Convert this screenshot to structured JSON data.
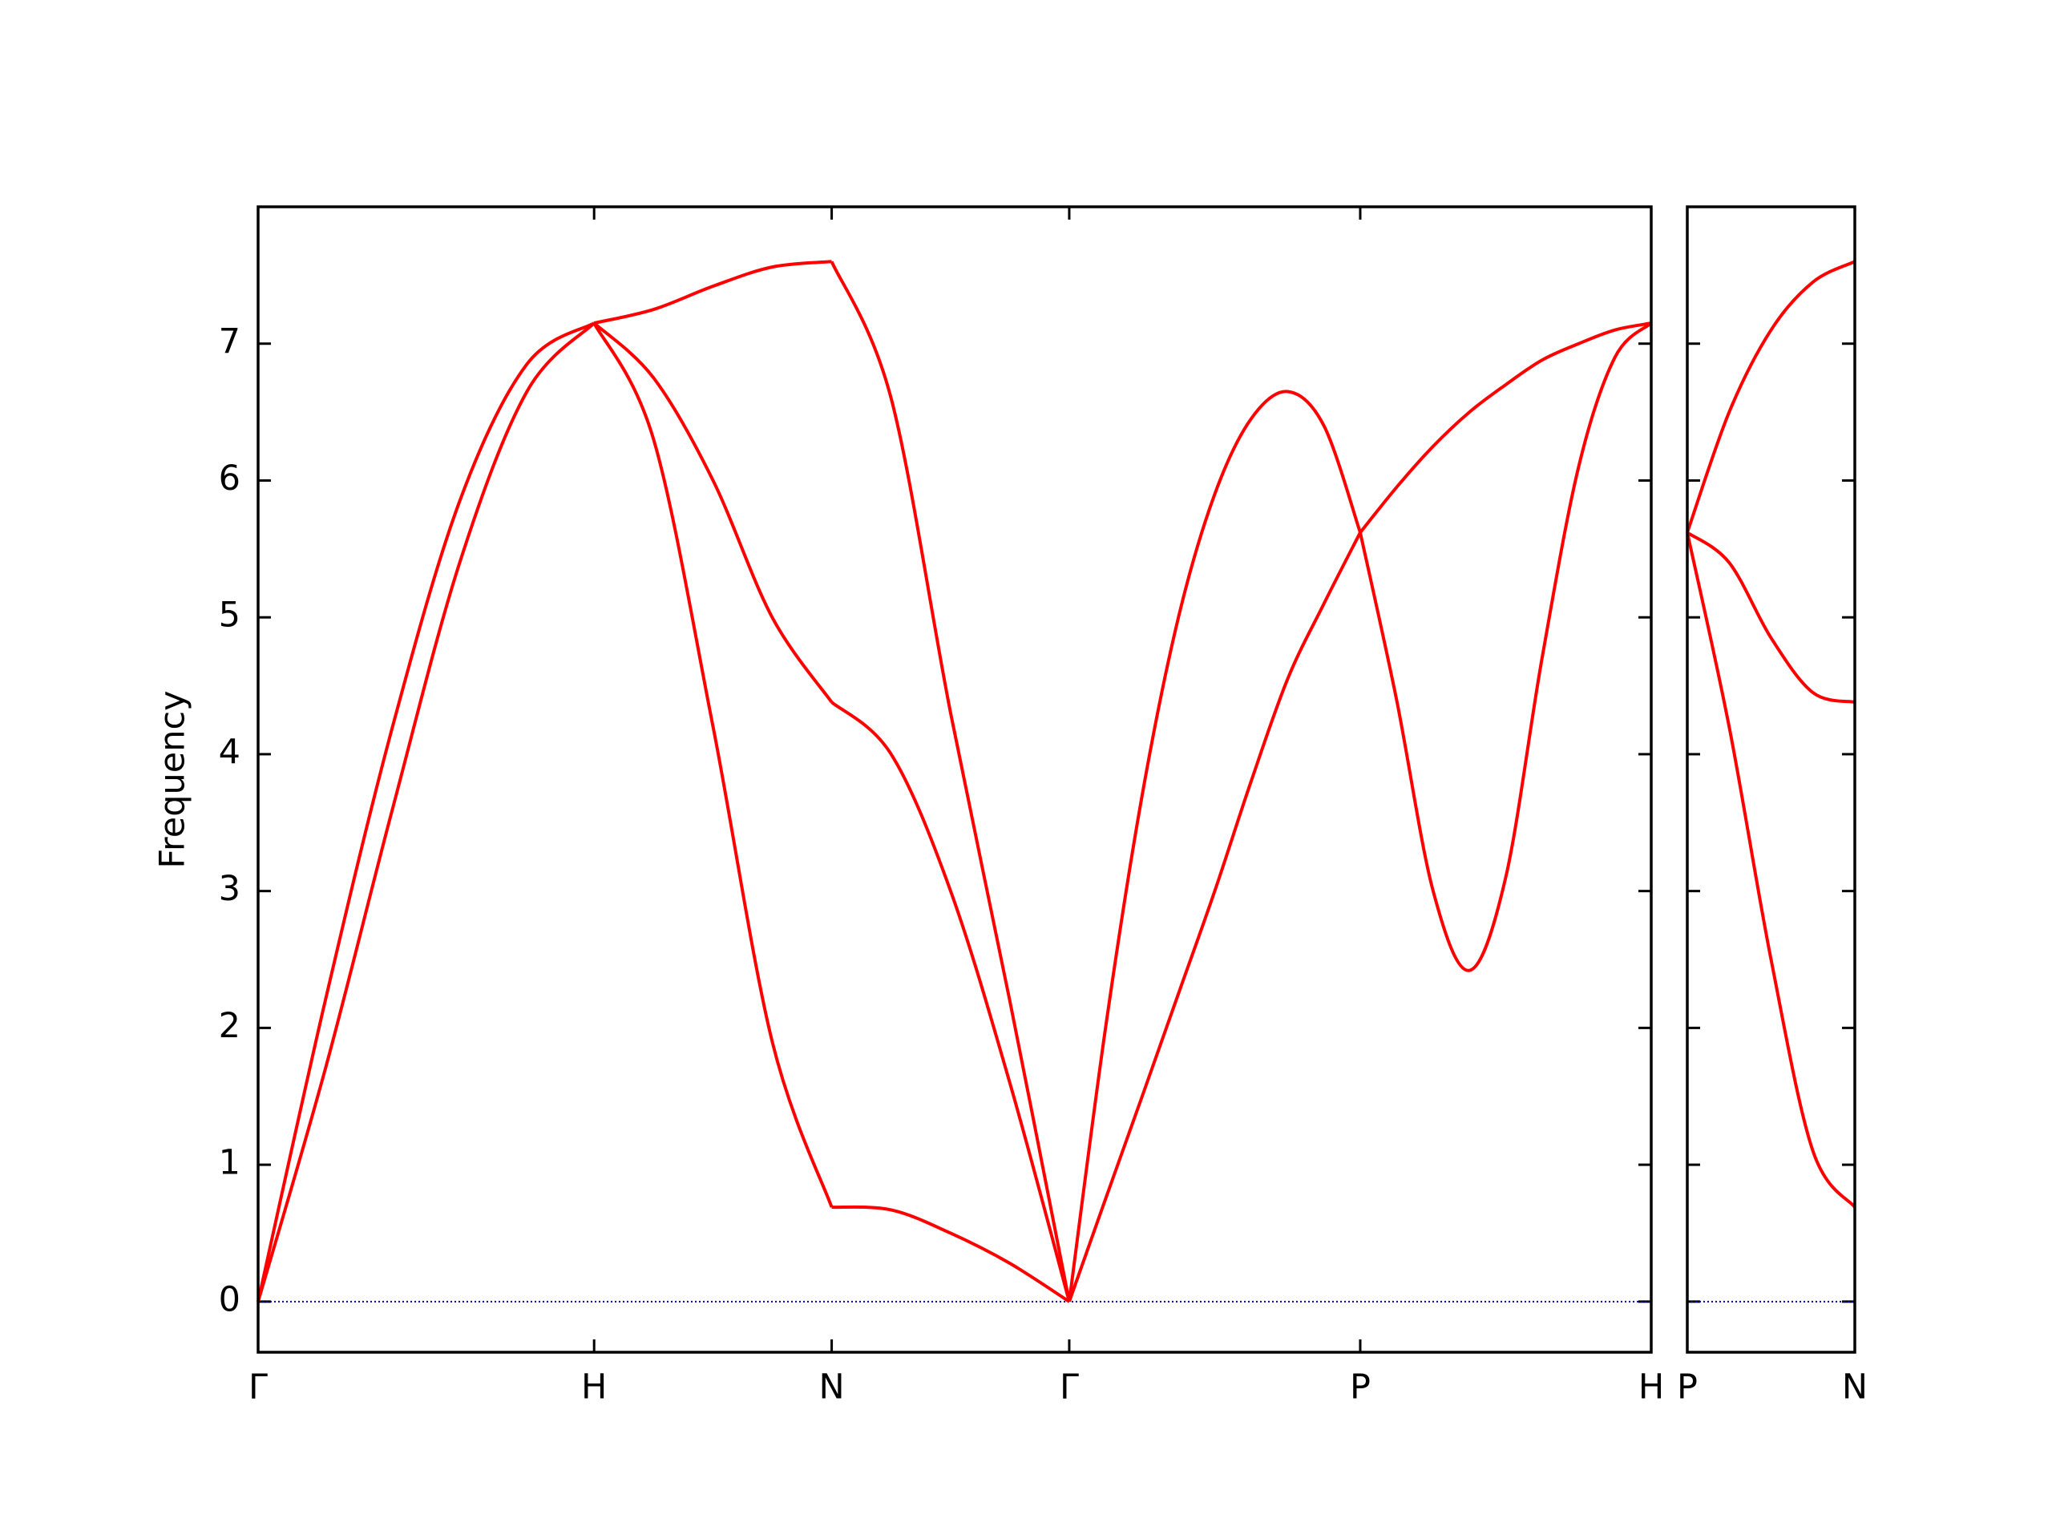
{
  "chart_data": [
    {
      "type": "line",
      "ylabel": "Frequency",
      "xlim": [
        0,
        4.146
      ],
      "ylim": [
        -0.37,
        8.0
      ],
      "xticks": [
        {
          "value": 0,
          "label": "Γ"
        },
        {
          "value": 1,
          "label": "H"
        },
        {
          "value": 1.707,
          "label": "N"
        },
        {
          "value": 2.414,
          "label": "Γ"
        },
        {
          "value": 3.28,
          "label": "P"
        },
        {
          "value": 4.146,
          "label": "H"
        }
      ],
      "yticks": [
        0,
        1,
        2,
        3,
        4,
        5,
        6,
        7
      ],
      "ytick_labels": true,
      "zero_line": {
        "value": 0,
        "color": "#0000aa"
      },
      "series": [
        {
          "color": "#ff0000",
          "x": [
            0,
            0.2,
            0.4,
            0.6,
            0.8,
            1.0
          ],
          "values": [
            0,
            2.2,
            4.2,
            5.85,
            6.85,
            7.15
          ]
        },
        {
          "color": "#ff0000",
          "x": [
            0,
            0.2,
            0.4,
            0.6,
            0.8,
            1.0
          ],
          "values": [
            0,
            1.7,
            3.6,
            5.4,
            6.65,
            7.15
          ]
        },
        {
          "color": "#ff0000",
          "x": [
            1,
            1.177,
            1.354,
            1.53,
            1.707
          ],
          "values": [
            7.15,
            7.25,
            7.42,
            7.56,
            7.6
          ]
        },
        {
          "color": "#ff0000",
          "x": [
            1,
            1.177,
            1.354,
            1.53,
            1.707
          ],
          "values": [
            7.15,
            6.75,
            6.0,
            5.0,
            4.38
          ]
        },
        {
          "color": "#ff0000",
          "x": [
            1,
            1.177,
            1.354,
            1.53,
            1.707
          ],
          "values": [
            7.15,
            6.3,
            4.2,
            1.9,
            0.69
          ]
        },
        {
          "color": "#ff0000",
          "x": [
            1.707,
            1.884,
            2.061,
            2.237,
            2.414
          ],
          "values": [
            7.6,
            6.6,
            4.3,
            2.2,
            0
          ]
        },
        {
          "color": "#ff0000",
          "x": [
            1.707,
            1.884,
            2.061,
            2.237,
            2.414
          ],
          "values": [
            4.38,
            4.0,
            3.0,
            1.6,
            0
          ]
        },
        {
          "color": "#ff0000",
          "x": [
            1.707,
            1.884,
            2.061,
            2.237,
            2.414
          ],
          "values": [
            0.69,
            0.67,
            0.5,
            0.28,
            0
          ]
        },
        {
          "color": "#ff0000",
          "x": [
            2.414,
            2.522,
            2.631,
            2.739,
            2.847,
            2.955,
            3.064,
            3.172,
            3.28
          ],
          "values": [
            0,
            2.0,
            3.7,
            5.0,
            5.9,
            6.45,
            6.65,
            6.4,
            5.62
          ]
        },
        {
          "color": "#ff0000",
          "x": [
            2.414,
            2.522,
            2.631,
            2.739,
            2.847,
            2.955,
            3.064,
            3.172,
            3.28
          ],
          "values": [
            0,
            0.75,
            1.5,
            2.25,
            3.0,
            3.8,
            4.55,
            5.1,
            5.62
          ]
        },
        {
          "color": "#ff0000",
          "x": [
            3.28,
            3.388,
            3.497,
            3.605,
            3.713,
            3.821,
            3.93,
            4.038,
            4.146
          ],
          "values": [
            5.62,
            4.4,
            3.0,
            2.42,
            3.1,
            4.7,
            6.1,
            6.9,
            7.15
          ]
        },
        {
          "color": "#ff0000",
          "x": [
            3.28,
            3.388,
            3.497,
            3.605,
            3.713,
            3.821,
            3.93,
            4.038,
            4.146
          ],
          "values": [
            5.62,
            5.95,
            6.25,
            6.5,
            6.7,
            6.88,
            7.0,
            7.1,
            7.15
          ]
        }
      ]
    },
    {
      "type": "line",
      "xlim": [
        0,
        0.5
      ],
      "ylim": [
        -0.37,
        8.0
      ],
      "xticks": [
        {
          "value": 0,
          "label": "P"
        },
        {
          "value": 0.5,
          "label": "N"
        }
      ],
      "yticks": [
        0,
        1,
        2,
        3,
        4,
        5,
        6,
        7
      ],
      "ytick_labels": false,
      "zero_line": {
        "value": 0,
        "color": "#0000aa"
      },
      "series": [
        {
          "color": "#ff0000",
          "x": [
            0,
            0.125,
            0.25,
            0.375,
            0.5
          ],
          "values": [
            5.62,
            6.5,
            7.1,
            7.45,
            7.6
          ]
        },
        {
          "color": "#ff0000",
          "x": [
            0,
            0.125,
            0.25,
            0.375,
            0.5
          ],
          "values": [
            5.62,
            5.4,
            4.85,
            4.45,
            4.38
          ]
        },
        {
          "color": "#ff0000",
          "x": [
            0,
            0.125,
            0.25,
            0.375,
            0.5
          ],
          "values": [
            5.62,
            4.2,
            2.5,
            1.1,
            0.69
          ]
        }
      ]
    }
  ]
}
